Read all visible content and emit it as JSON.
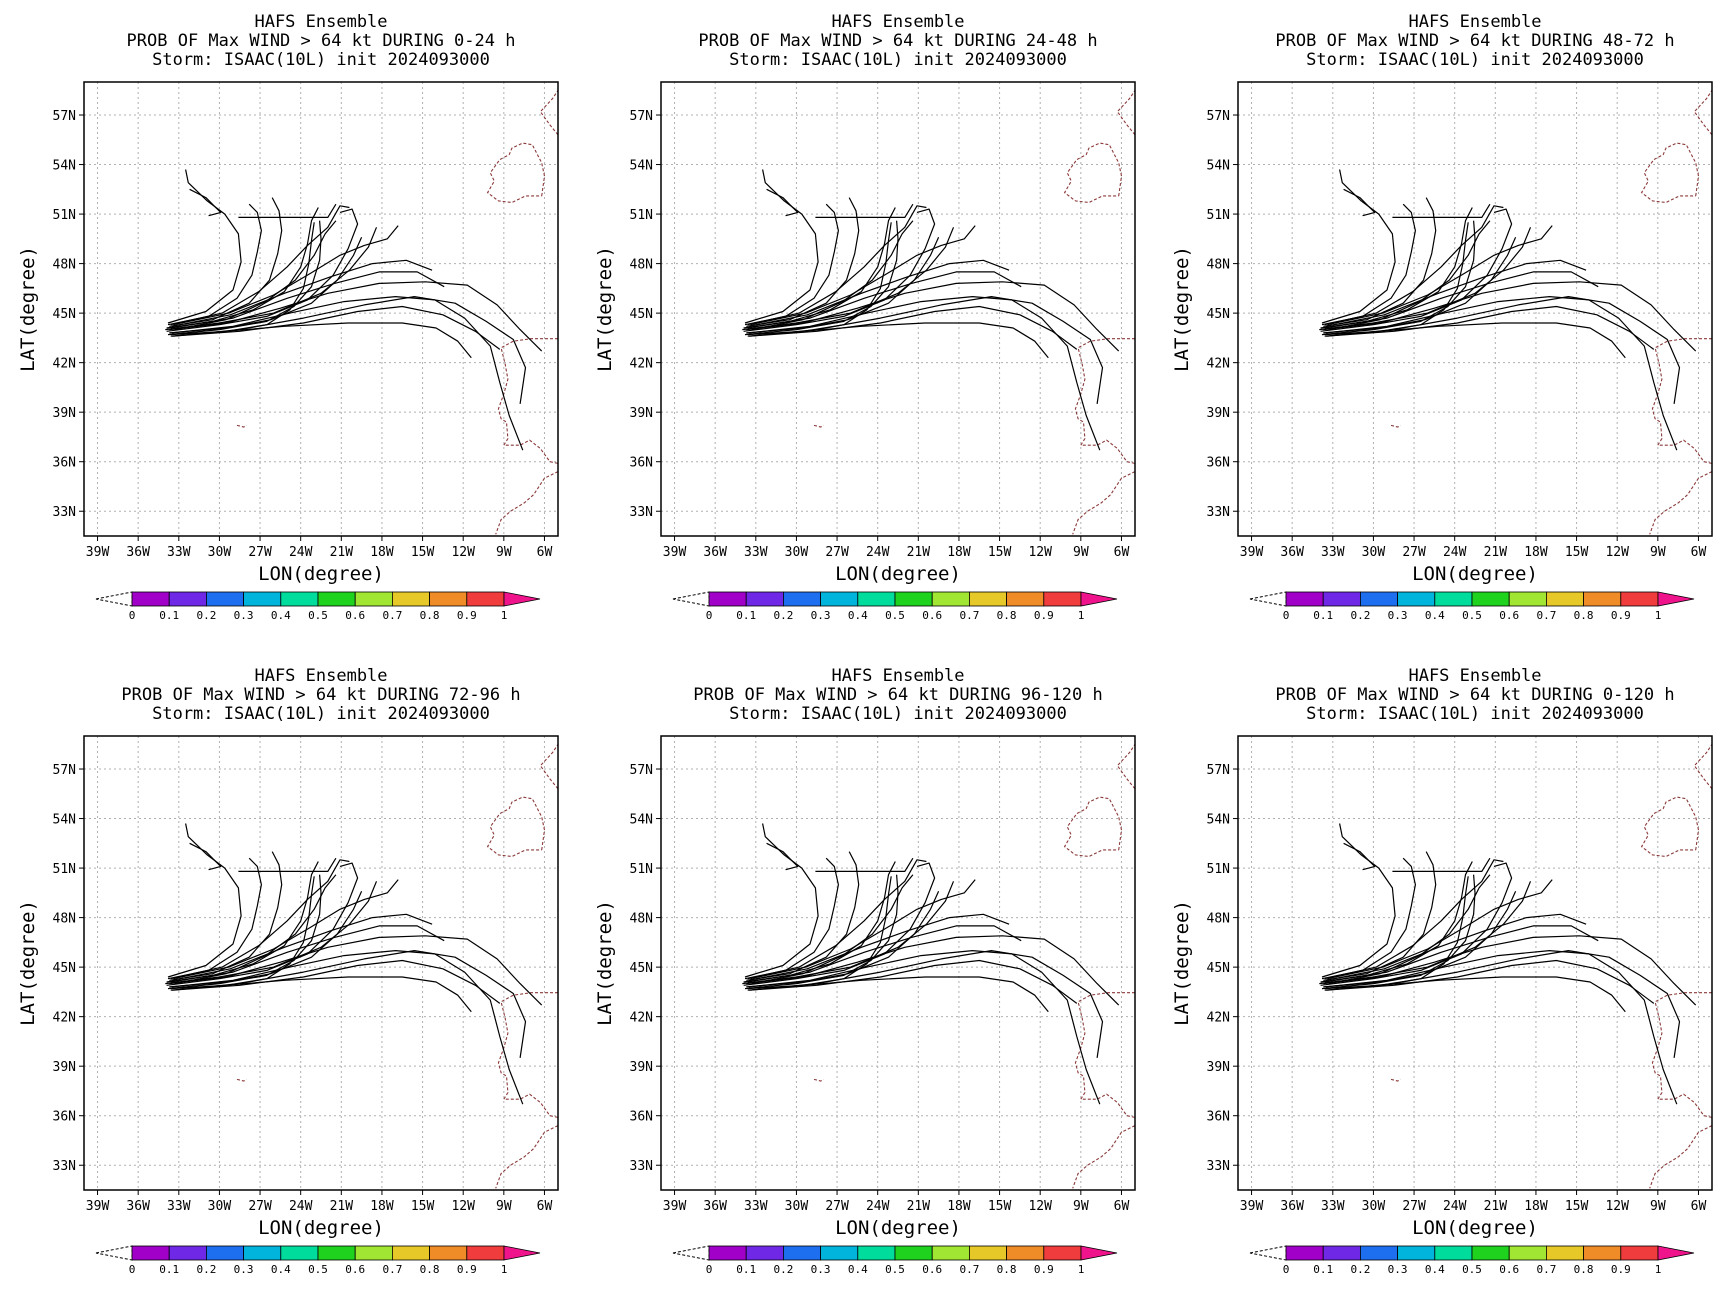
{
  "figure": {
    "panels": [
      {
        "model": "HAFS Ensemble",
        "subtitle": "PROB OF Max WIND > 64 kt DURING  0-24 h",
        "storm": "Storm: ISAAC(10L) init 2024093000"
      },
      {
        "model": "HAFS Ensemble",
        "subtitle": "PROB OF Max WIND > 64 kt DURING 24-48 h",
        "storm": "Storm: ISAAC(10L) init 2024093000"
      },
      {
        "model": "HAFS Ensemble",
        "subtitle": "PROB OF Max WIND > 64 kt DURING 48-72 h",
        "storm": "Storm: ISAAC(10L) init 2024093000"
      },
      {
        "model": "HAFS Ensemble",
        "subtitle": "PROB OF Max WIND > 64 kt DURING 72-96 h",
        "storm": "Storm: ISAAC(10L) init 2024093000"
      },
      {
        "model": "HAFS Ensemble",
        "subtitle": "PROB OF Max WIND > 64 kt DURING 96-120 h",
        "storm": "Storm: ISAAC(10L) init 2024093000"
      },
      {
        "model": "HAFS Ensemble",
        "subtitle": "PROB OF Max WIND > 64 kt DURING 0-120 h",
        "storm": "Storm: ISAAC(10L) init 2024093000"
      }
    ]
  },
  "chart_data": {
    "type": "line",
    "xlabel": "LON(degree)",
    "ylabel": "LAT(degree)",
    "xlim": [
      -40,
      -5
    ],
    "ylim": [
      31.5,
      59
    ],
    "xticks": [
      -39,
      -36,
      -33,
      -30,
      -27,
      -24,
      -21,
      -18,
      -15,
      -12,
      -9,
      -6
    ],
    "xtick_labels": [
      "39W",
      "36W",
      "33W",
      "30W",
      "27W",
      "24W",
      "21W",
      "18W",
      "15W",
      "12W",
      "9W",
      "6W"
    ],
    "yticks": [
      33,
      36,
      39,
      42,
      45,
      48,
      51,
      54,
      57
    ],
    "ytick_labels": [
      "33N",
      "36N",
      "39N",
      "42N",
      "45N",
      "48N",
      "51N",
      "54N",
      "57N"
    ],
    "grid": true,
    "colorbar": {
      "levels": [
        "0",
        "0.1",
        "0.2",
        "0.3",
        "0.4",
        "0.5",
        "0.6",
        "0.7",
        "0.8",
        "0.9",
        "1"
      ],
      "colors": [
        "#a000c8",
        "#6e28e6",
        "#1e6ef0",
        "#00b4dc",
        "#00dc9b",
        "#1ed21e",
        "#a0e632",
        "#e6c828",
        "#f08c28",
        "#f03c3c",
        "#f0148c"
      ]
    },
    "series": [
      {
        "points": [
          [
            -34.0,
            44.0
          ],
          [
            -30,
            44.4
          ],
          [
            -26,
            45.0
          ],
          [
            -22.5,
            46.2
          ],
          [
            -20.4,
            47.6
          ],
          [
            -19.0,
            49.0
          ],
          [
            -18.4,
            50.2
          ]
        ]
      },
      {
        "points": [
          [
            -33.9,
            43.9
          ],
          [
            -30,
            44.3
          ],
          [
            -26.5,
            44.8
          ],
          [
            -23.5,
            45.8
          ],
          [
            -21.6,
            47.3
          ],
          [
            -20.5,
            48.9
          ],
          [
            -19.8,
            50.4
          ],
          [
            -20.2,
            51.3
          ],
          [
            -21.1,
            51.1
          ]
        ]
      },
      {
        "points": [
          [
            -33.7,
            43.8
          ],
          [
            -29.5,
            44.1
          ],
          [
            -26.2,
            44.6
          ],
          [
            -23.2,
            45.6
          ],
          [
            -21.3,
            47.0
          ],
          [
            -20.1,
            48.5
          ],
          [
            -19.5,
            49.6
          ]
        ]
      },
      {
        "points": [
          [
            -33.8,
            43.7
          ],
          [
            -30,
            44.0
          ],
          [
            -26.5,
            44.5
          ],
          [
            -24.5,
            45.4
          ],
          [
            -23.2,
            46.6
          ],
          [
            -22.6,
            48.2
          ],
          [
            -22.5,
            49.5
          ],
          [
            -22.6,
            50.6
          ]
        ]
      },
      {
        "points": [
          [
            -33.6,
            43.6
          ],
          [
            -29.5,
            43.9
          ],
          [
            -26.5,
            44.3
          ],
          [
            -24.8,
            45.2
          ],
          [
            -23.8,
            46.5
          ],
          [
            -23.4,
            48.0
          ],
          [
            -23.2,
            49.4
          ],
          [
            -23.0,
            50.5
          ]
        ]
      },
      {
        "points": [
          [
            -33.9,
            44.1
          ],
          [
            -30.5,
            44.5
          ],
          [
            -27.5,
            45.2
          ],
          [
            -25.2,
            46.3
          ],
          [
            -24.0,
            47.8
          ],
          [
            -23.5,
            49.2
          ],
          [
            -23.2,
            50.6
          ],
          [
            -22.7,
            51.4
          ]
        ]
      },
      {
        "points": [
          [
            -33.7,
            44.2
          ],
          [
            -30.5,
            44.6
          ],
          [
            -27.8,
            45.6
          ],
          [
            -26.3,
            47.0
          ],
          [
            -25.7,
            48.6
          ],
          [
            -25.4,
            50.0
          ],
          [
            -25.6,
            51.2
          ],
          [
            -26.1,
            52.0
          ]
        ]
      },
      {
        "points": [
          [
            -33.8,
            44.3
          ],
          [
            -30.8,
            44.8
          ],
          [
            -28.7,
            45.9
          ],
          [
            -27.6,
            47.3
          ],
          [
            -27.2,
            48.7
          ],
          [
            -26.9,
            50.0
          ],
          [
            -27.2,
            51.1
          ],
          [
            -27.8,
            51.6
          ]
        ]
      },
      {
        "points": [
          [
            -33.8,
            44.4
          ],
          [
            -31.0,
            45.1
          ],
          [
            -29.0,
            46.4
          ],
          [
            -28.4,
            48.1
          ],
          [
            -28.6,
            49.8
          ],
          [
            -29.6,
            51.0
          ],
          [
            -30.9,
            51.8
          ],
          [
            -32.3,
            52.9
          ],
          [
            -32.5,
            53.7
          ]
        ]
      },
      {
        "points": [
          [
            -33.6,
            43.7
          ],
          [
            -29.5,
            43.9
          ],
          [
            -25.2,
            44.2
          ],
          [
            -20.5,
            44.4
          ],
          [
            -16.5,
            44.4
          ],
          [
            -14.0,
            44.1
          ],
          [
            -12.4,
            43.3
          ],
          [
            -11.4,
            42.3
          ]
        ]
      },
      {
        "points": [
          [
            -33.5,
            43.6
          ],
          [
            -28.5,
            43.9
          ],
          [
            -23.8,
            44.4
          ],
          [
            -19.8,
            45.1
          ],
          [
            -16.5,
            45.4
          ],
          [
            -13.5,
            44.9
          ],
          [
            -11.1,
            43.9
          ],
          [
            -9.3,
            42.8
          ]
        ]
      },
      {
        "points": [
          [
            -33.4,
            43.6
          ],
          [
            -28.5,
            44.0
          ],
          [
            -23.8,
            44.7
          ],
          [
            -19.3,
            45.5
          ],
          [
            -15.6,
            46.0
          ],
          [
            -12.6,
            45.6
          ],
          [
            -10.3,
            44.5
          ],
          [
            -8.3,
            43.4
          ],
          [
            -7.4,
            41.7
          ],
          [
            -7.8,
            39.5
          ]
        ]
      },
      {
        "points": [
          [
            -33.5,
            43.8
          ],
          [
            -29.0,
            44.2
          ],
          [
            -24.8,
            45.0
          ],
          [
            -20.8,
            45.7
          ],
          [
            -17.0,
            46.0
          ],
          [
            -14.1,
            45.8
          ],
          [
            -11.9,
            44.7
          ],
          [
            -10.0,
            43.0
          ],
          [
            -9.3,
            40.8
          ],
          [
            -8.6,
            38.8
          ],
          [
            -7.6,
            36.7
          ]
        ]
      },
      {
        "points": [
          [
            -33.7,
            44.0
          ],
          [
            -29.5,
            44.4
          ],
          [
            -25.5,
            45.3
          ],
          [
            -22.0,
            46.2
          ],
          [
            -18.2,
            46.8
          ],
          [
            -14.8,
            46.9
          ],
          [
            -11.7,
            46.7
          ],
          [
            -9.5,
            45.5
          ],
          [
            -7.8,
            44.0
          ],
          [
            -6.2,
            42.7
          ]
        ]
      },
      {
        "points": [
          [
            -33.6,
            44.1
          ],
          [
            -29.0,
            44.7
          ],
          [
            -25.0,
            45.9
          ],
          [
            -21.5,
            46.8
          ],
          [
            -18.2,
            47.5
          ],
          [
            -15.4,
            47.5
          ],
          [
            -13.4,
            46.6
          ]
        ]
      },
      {
        "points": [
          [
            -33.5,
            44.2
          ],
          [
            -29.2,
            44.9
          ],
          [
            -25.2,
            46.2
          ],
          [
            -21.8,
            47.2
          ],
          [
            -18.7,
            48.0
          ],
          [
            -16.2,
            48.2
          ],
          [
            -14.3,
            47.6
          ]
        ]
      },
      {
        "points": [
          [
            -33.4,
            44.3
          ],
          [
            -29.3,
            45.0
          ],
          [
            -26.0,
            46.1
          ],
          [
            -23.3,
            47.4
          ],
          [
            -21.1,
            48.5
          ],
          [
            -19.3,
            49.1
          ],
          [
            -17.6,
            49.5
          ],
          [
            -16.8,
            50.3
          ]
        ]
      },
      {
        "points": [
          [
            -33.6,
            44.3
          ],
          [
            -29.8,
            45.0
          ],
          [
            -27.1,
            46.3
          ],
          [
            -25.0,
            47.8
          ],
          [
            -23.5,
            49.1
          ],
          [
            -22.0,
            50.2
          ],
          [
            -21.1,
            51.5
          ],
          [
            -20.4,
            51.4
          ]
        ]
      },
      {
        "points": [
          [
            -33.3,
            44.0
          ],
          [
            -29.5,
            44.6
          ],
          [
            -26.6,
            45.7
          ],
          [
            -24.4,
            47.0
          ],
          [
            -23.0,
            48.5
          ],
          [
            -22.2,
            49.8
          ],
          [
            -21.4,
            50.6
          ]
        ]
      },
      {
        "points": [
          [
            -32.2,
            52.5
          ],
          [
            -31.0,
            52.0
          ],
          [
            -30.4,
            51.5
          ],
          [
            -29.9,
            51.1
          ],
          [
            -30.8,
            50.9
          ]
        ]
      },
      {
        "points": [
          [
            -28.6,
            50.8
          ],
          [
            -22.0,
            50.8
          ],
          [
            -21.4,
            51.6
          ]
        ]
      }
    ],
    "coastline_color": "#8b3a3a",
    "track_color": "#000000"
  }
}
